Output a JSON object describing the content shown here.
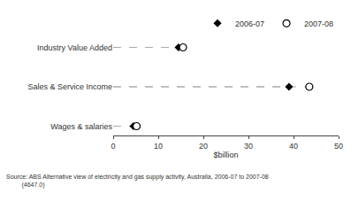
{
  "chart_data": {
    "type": "dot",
    "categories": [
      "Industry Value Added",
      "Sales & Service Income",
      "Wages & salaries"
    ],
    "series": [
      {
        "name": "2006-07",
        "color": "#000000",
        "marker": "diamond",
        "values": [
          14.5,
          39.0,
          4.5
        ]
      },
      {
        "name": "2007-08",
        "color": "#000000",
        "marker": "circle-open",
        "values": [
          15.5,
          43.5,
          5.2
        ]
      }
    ],
    "color": "#aaaaaa",
    "line_style": "dashed",
    "xlabel": "$billion",
    "xlim": [
      0,
      50
    ],
    "xticks": [
      0,
      10,
      20,
      30,
      40,
      50
    ],
    "grid": false,
    "legend": "upper right",
    "annotations": [
      "Source: ABS Alternative view of electricity and gas supply activity, Australia, 2006-07 to 2007-08",
      "         (4647.0)"
    ]
  }
}
